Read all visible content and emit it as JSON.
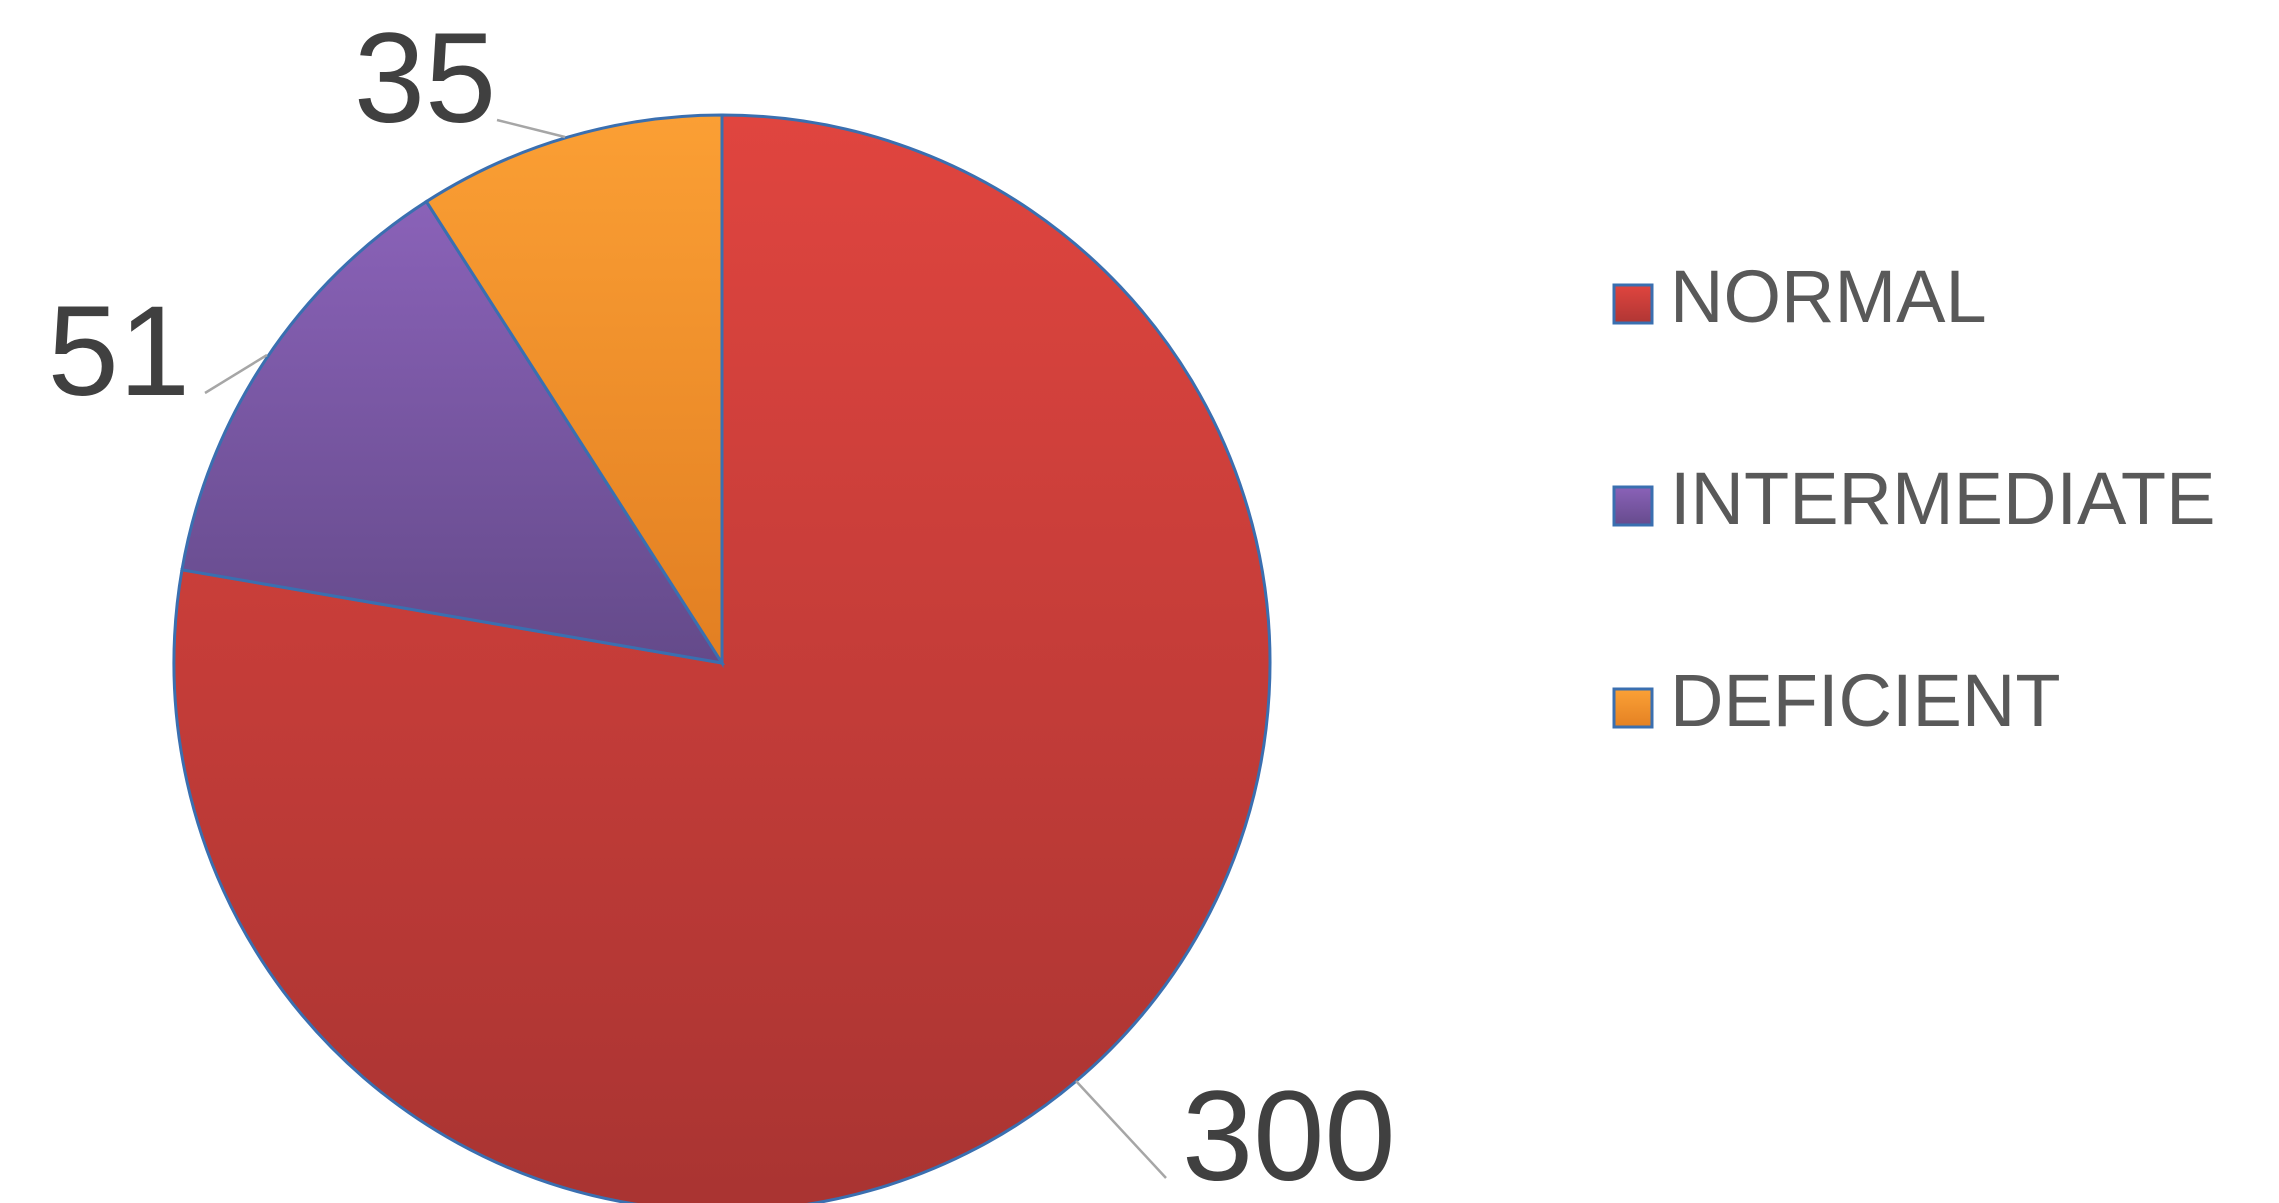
{
  "chart_data": {
    "type": "pie",
    "categories": [
      "NORMAL",
      "INTERMEDIATE",
      "DEFICIENT"
    ],
    "values": [
      300,
      51,
      35
    ],
    "colors": [
      "#cf3d3a",
      "#7a58a3",
      "#f08e2a"
    ],
    "data_labels": [
      "300",
      "51",
      "35"
    ],
    "start_angle": "12 o'clock",
    "direction": "clockwise",
    "legend": {
      "position": "right",
      "entries": [
        "NORMAL",
        "INTERMEDIATE",
        "DEFICIENT"
      ]
    }
  }
}
